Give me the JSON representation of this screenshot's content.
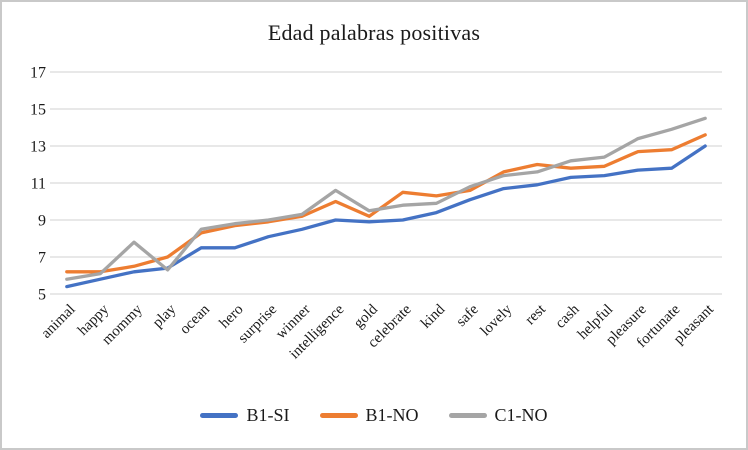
{
  "chart_data": {
    "type": "line",
    "title": "Edad palabras positivas",
    "categories": [
      "animal",
      "happy",
      "mommy",
      "play",
      "ocean",
      "hero",
      "surprise",
      "winner",
      "intelligence",
      "gold",
      "celebrate",
      "kind",
      "safe",
      "lovely",
      "rest",
      "cash",
      "helpful",
      "pleasure",
      "fortunate",
      "pleasant"
    ],
    "series": [
      {
        "name": "B1-SI",
        "color": "#4472C4",
        "values": [
          5.4,
          5.8,
          6.2,
          6.4,
          7.5,
          7.5,
          8.1,
          8.5,
          9.0,
          8.9,
          9.0,
          9.4,
          10.1,
          10.7,
          10.9,
          11.3,
          11.4,
          11.7,
          11.8,
          13.0
        ]
      },
      {
        "name": "B1-NO",
        "color": "#ED7D31",
        "values": [
          6.2,
          6.2,
          6.5,
          7.0,
          8.3,
          8.7,
          8.9,
          9.2,
          10.0,
          9.2,
          10.5,
          10.3,
          10.6,
          11.6,
          12.0,
          11.8,
          11.9,
          12.7,
          12.8,
          13.6
        ]
      },
      {
        "name": "C1-NO",
        "color": "#A5A5A5",
        "values": [
          5.8,
          6.1,
          7.8,
          6.3,
          8.5,
          8.8,
          9.0,
          9.3,
          10.6,
          9.5,
          9.8,
          9.9,
          10.8,
          11.4,
          11.6,
          12.2,
          12.4,
          13.4,
          13.9,
          14.5
        ]
      }
    ],
    "xlabel": "",
    "ylabel": "",
    "ylim": [
      5,
      17
    ],
    "yticks": [
      5,
      7,
      9,
      11,
      13,
      15,
      17
    ],
    "grid": "horizontal",
    "gridline_color": "#D9D9D9",
    "legend_position": "bottom",
    "x_label_rotation_deg": 45
  }
}
